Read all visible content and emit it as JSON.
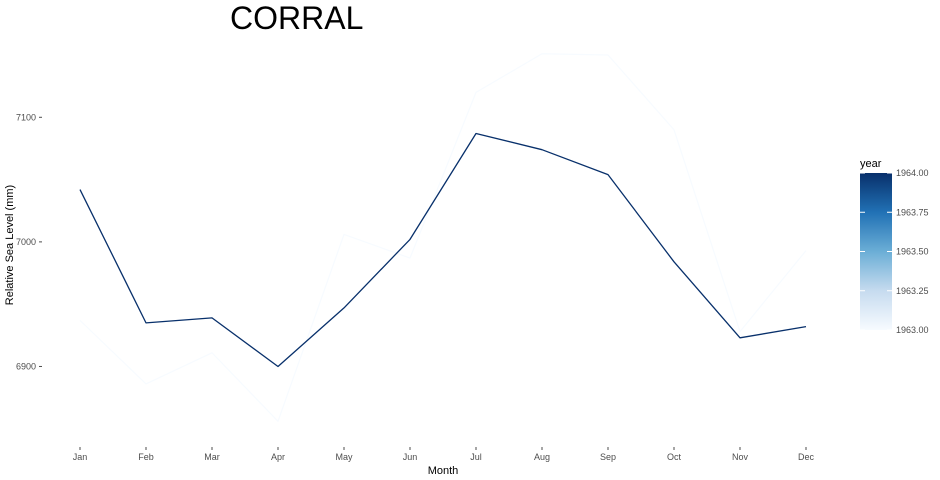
{
  "chart_data": {
    "type": "line",
    "title": "CORRAL",
    "xlabel": "Month",
    "ylabel": "Relative Sea Level (mm)",
    "categories": [
      "Jan",
      "Feb",
      "Mar",
      "Apr",
      "May",
      "Jun",
      "Jul",
      "Aug",
      "Sep",
      "Oct",
      "Nov",
      "Dec"
    ],
    "yticks": [
      6900,
      7000,
      7100
    ],
    "ylim": [
      6845,
      7150
    ],
    "grid": false,
    "series": [
      {
        "year": 1963,
        "color": "#f7fbff",
        "values": [
          6937,
          6886,
          6911,
          6856,
          7006,
          6987,
          7120,
          7151,
          7150,
          7090,
          6928,
          6993
        ]
      },
      {
        "year": 1964,
        "color": "#08306b",
        "values": [
          7042,
          6935,
          6939,
          6900,
          6947,
          7002,
          7087,
          7074,
          7054,
          6984,
          6923,
          6932
        ]
      }
    ],
    "legend": {
      "title": "year",
      "position": "right",
      "labels": [
        "1964.00",
        "1963.75",
        "1963.50",
        "1963.25",
        "1963.00"
      ],
      "values": [
        1964.0,
        1963.75,
        1963.5,
        1963.25,
        1963.0
      ],
      "gradient": [
        "#08306b",
        "#2171b5",
        "#6baed6",
        "#c6dbef",
        "#f7fbff"
      ]
    }
  }
}
